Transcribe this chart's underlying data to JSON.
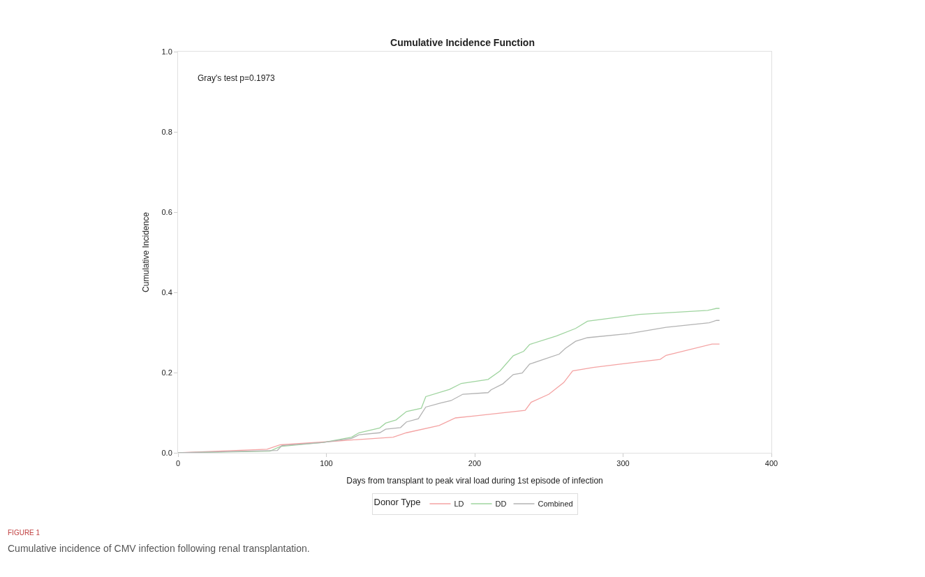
{
  "chart_data": {
    "type": "line",
    "title": "Cumulative Incidence Function",
    "xlabel": "Days from transplant to peak viral load during 1st episode of infection",
    "ylabel": "Cumulative Incidence",
    "legend_title": "Donor Type",
    "legend": "bottom",
    "marker": "none",
    "line_style": "solid",
    "xlim": [
      0,
      400
    ],
    "xticks": [
      0,
      100,
      200,
      300,
      400
    ],
    "ylim": [
      0,
      1
    ],
    "yticks": [
      {
        "value": 0,
        "label": "0.0"
      },
      {
        "value": 0.2,
        "label": "0.2"
      },
      {
        "value": 0.4,
        "label": "0.4"
      },
      {
        "value": 0.6,
        "label": "0.6"
      },
      {
        "value": 0.8,
        "label": "0.8"
      },
      {
        "value": 1,
        "label": "1.0"
      }
    ],
    "annotations": [
      "Gray's test p=0.1973",
      "FIGURE 1",
      "Cumulative incidence of CMV infection following renal transplantation."
    ],
    "series": [
      {
        "name": "LD",
        "color": "#f4a3a3",
        "x": [
          0,
          60,
          69,
          98,
          117,
          145,
          154,
          176,
          187,
          200,
          234,
          238,
          250,
          260,
          266,
          280,
          300,
          325,
          329,
          360,
          365
        ],
        "values": [
          0,
          0.009,
          0.02,
          0.027,
          0.032,
          0.039,
          0.05,
          0.068,
          0.087,
          0.092,
          0.106,
          0.126,
          0.146,
          0.175,
          0.204,
          0.213,
          0.222,
          0.233,
          0.243,
          0.271,
          0.271
        ]
      },
      {
        "name": "DD",
        "color": "#9fd49f",
        "x": [
          0,
          62,
          69,
          98,
          117,
          122,
          136,
          140,
          147,
          154,
          164,
          167,
          183,
          191,
          209,
          217,
          226,
          233,
          237,
          255,
          268,
          276,
          311,
          357,
          363,
          365
        ],
        "values": [
          0,
          0.004,
          0.016,
          0.026,
          0.039,
          0.05,
          0.062,
          0.074,
          0.082,
          0.103,
          0.111,
          0.14,
          0.158,
          0.173,
          0.183,
          0.204,
          0.242,
          0.253,
          0.27,
          0.291,
          0.31,
          0.328,
          0.345,
          0.355,
          0.36,
          0.36
        ]
      },
      {
        "name": "Combined",
        "color": "#b3b3b3",
        "x": [
          0,
          67,
          70,
          98,
          117,
          122,
          136,
          140,
          150,
          154,
          162,
          167,
          177,
          184,
          192,
          209,
          211,
          219,
          226,
          232,
          237,
          257,
          261,
          268,
          276,
          304,
          329,
          358,
          363,
          365
        ],
        "values": [
          0,
          0.006,
          0.018,
          0.026,
          0.036,
          0.045,
          0.05,
          0.059,
          0.063,
          0.077,
          0.085,
          0.114,
          0.124,
          0.13,
          0.146,
          0.15,
          0.157,
          0.172,
          0.195,
          0.199,
          0.221,
          0.246,
          0.26,
          0.278,
          0.287,
          0.297,
          0.313,
          0.324,
          0.33,
          0.33
        ]
      }
    ]
  }
}
